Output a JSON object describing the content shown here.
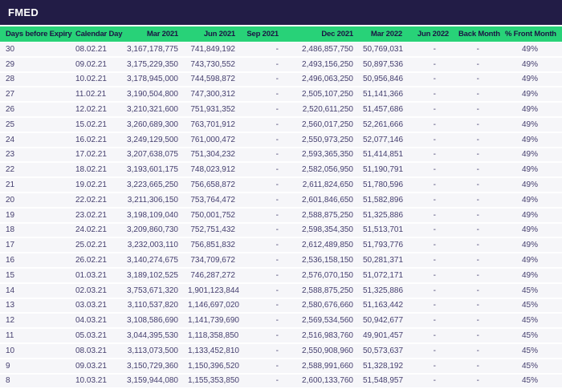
{
  "title": "FMED",
  "colors": {
    "titlebar_bg": "#221c46",
    "header_bg": "#28d278",
    "header_text": "#1a1543",
    "row_bg": "#f6f6f9",
    "data_text": "#443e6e"
  },
  "table": {
    "columns": [
      "Days before Expiry",
      "Calendar Day",
      "Mar 2021",
      "Jun 2021",
      "Sep 2021",
      "Dec 2021",
      "Mar 2022",
      "Jun 2022",
      "Back Month",
      "% Front Month"
    ],
    "rows": [
      [
        "30",
        "08.02.21",
        "3,167,178,775",
        "741,849,192",
        "-",
        "2,486,857,750",
        "50,769,031",
        "-",
        "-",
        "49%"
      ],
      [
        "29",
        "09.02.21",
        "3,175,229,350",
        "743,730,552",
        "-",
        "2,493,156,250",
        "50,897,536",
        "-",
        "-",
        "49%"
      ],
      [
        "28",
        "10.02.21",
        "3,178,945,000",
        "744,598,872",
        "-",
        "2,496,063,250",
        "50,956,846",
        "-",
        "-",
        "49%"
      ],
      [
        "27",
        "11.02.21",
        "3,190,504,800",
        "747,300,312",
        "-",
        "2,505,107,250",
        "51,141,366",
        "-",
        "-",
        "49%"
      ],
      [
        "26",
        "12.02.21",
        "3,210,321,600",
        "751,931,352",
        "-",
        "2,520,611,250",
        "51,457,686",
        "-",
        "-",
        "49%"
      ],
      [
        "25",
        "15.02.21",
        "3,260,689,300",
        "763,701,912",
        "-",
        "2,560,017,250",
        "52,261,666",
        "-",
        "-",
        "49%"
      ],
      [
        "24",
        "16.02.21",
        "3,249,129,500",
        "761,000,472",
        "-",
        "2,550,973,250",
        "52,077,146",
        "-",
        "-",
        "49%"
      ],
      [
        "23",
        "17.02.21",
        "3,207,638,075",
        "751,304,232",
        "-",
        "2,593,365,350",
        "51,414,851",
        "-",
        "-",
        "49%"
      ],
      [
        "22",
        "18.02.21",
        "3,193,601,175",
        "748,023,912",
        "-",
        "2,582,056,950",
        "51,190,791",
        "-",
        "-",
        "49%"
      ],
      [
        "21",
        "19.02.21",
        "3,223,665,250",
        "756,658,872",
        "-",
        "2,611,824,650",
        "51,780,596",
        "-",
        "-",
        "49%"
      ],
      [
        "20",
        "22.02.21",
        "3,211,306,150",
        "753,764,472",
        "-",
        "2,601,846,650",
        "51,582,896",
        "-",
        "-",
        "49%"
      ],
      [
        "19",
        "23.02.21",
        "3,198,109,040",
        "750,001,752",
        "-",
        "2,588,875,250",
        "51,325,886",
        "-",
        "-",
        "49%"
      ],
      [
        "18",
        "24.02.21",
        "3,209,860,730",
        "752,751,432",
        "-",
        "2,598,354,350",
        "51,513,701",
        "-",
        "-",
        "49%"
      ],
      [
        "17",
        "25.02.21",
        "3,232,003,110",
        "756,851,832",
        "-",
        "2,612,489,850",
        "51,793,776",
        "-",
        "-",
        "49%"
      ],
      [
        "16",
        "26.02.21",
        "3,140,274,675",
        "734,709,672",
        "-",
        "2,536,158,150",
        "50,281,371",
        "-",
        "-",
        "49%"
      ],
      [
        "15",
        "01.03.21",
        "3,189,102,525",
        "746,287,272",
        "-",
        "2,576,070,150",
        "51,072,171",
        "-",
        "-",
        "49%"
      ],
      [
        "14",
        "02.03.21",
        "3,753,671,320",
        "1,901,123,844",
        "-",
        "2,588,875,250",
        "51,325,886",
        "-",
        "-",
        "45%"
      ],
      [
        "13",
        "03.03.21",
        "3,110,537,820",
        "1,146,697,020",
        "-",
        "2,580,676,660",
        "51,163,442",
        "-",
        "-",
        "45%"
      ],
      [
        "12",
        "04.03.21",
        "3,108,586,690",
        "1,141,739,690",
        "-",
        "2,569,534,560",
        "50,942,677",
        "-",
        "-",
        "45%"
      ],
      [
        "11",
        "05.03.21",
        "3,044,395,530",
        "1,118,358,850",
        "-",
        "2,516,983,760",
        "49,901,457",
        "-",
        "-",
        "45%"
      ],
      [
        "10",
        "08.03.21",
        "3,113,073,500",
        "1,133,452,810",
        "-",
        "2,550,908,960",
        "50,573,637",
        "-",
        "-",
        "45%"
      ],
      [
        "9",
        "09.03.21",
        "3,150,729,360",
        "1,150,396,520",
        "-",
        "2,588,991,660",
        "51,328,192",
        "-",
        "-",
        "45%"
      ],
      [
        "8",
        "10.03.21",
        "3,159,944,080",
        "1,155,353,850",
        "-",
        "2,600,133,760",
        "51,548,957",
        "-",
        "-",
        "45%"
      ]
    ]
  }
}
